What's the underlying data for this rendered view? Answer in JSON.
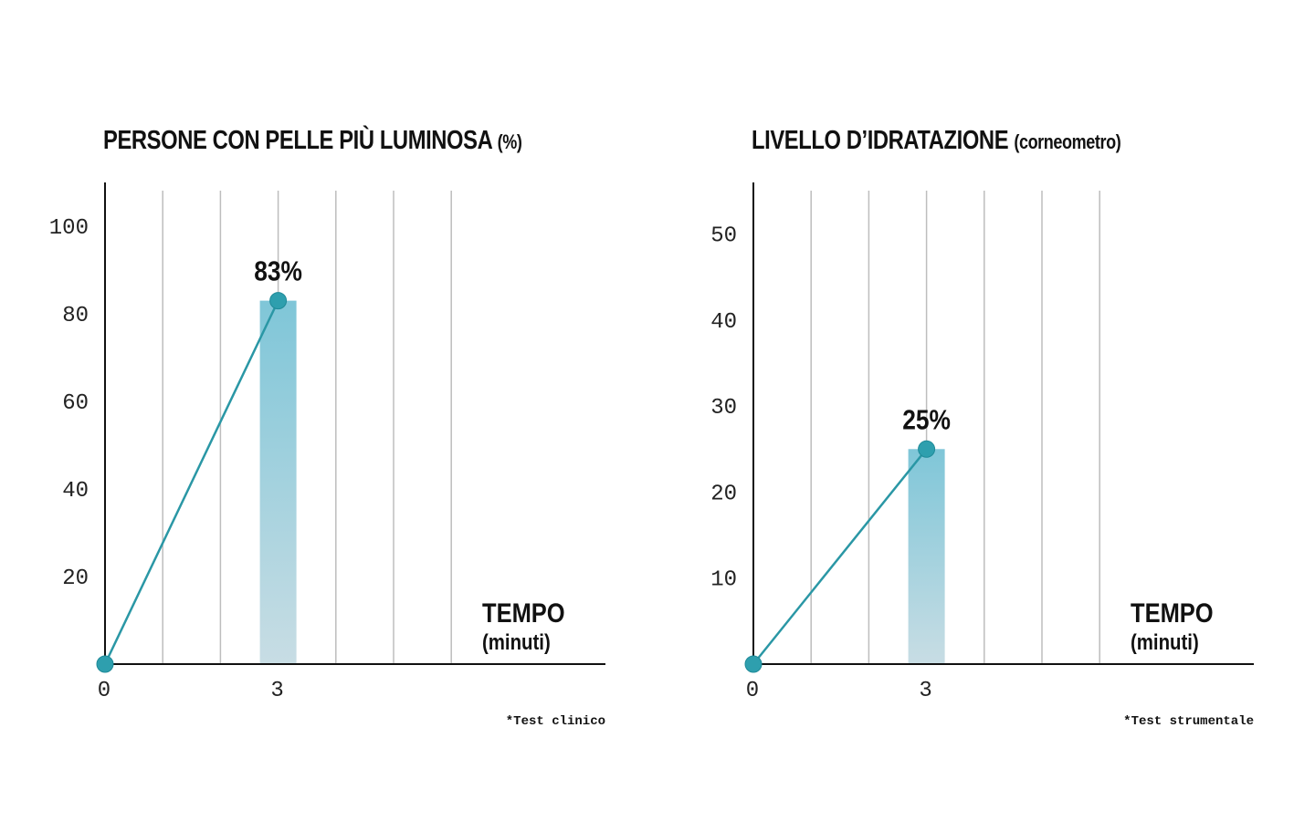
{
  "chart_data": [
    {
      "type": "line",
      "title": "PERSONE CON PELLE PIÙ LUMINOSA",
      "title_unit": "(%)",
      "xlabel": "TEMPO",
      "xlabel_unit": "(minuti)",
      "x_ticks": [
        "0",
        "3"
      ],
      "y_ticks": [
        "20",
        "40",
        "60",
        "80",
        "100"
      ],
      "ylim": [
        0,
        110
      ],
      "grid": true,
      "points": [
        {
          "x": 0,
          "y": 0
        },
        {
          "x": 3,
          "y": 83
        }
      ],
      "bar": {
        "x": 3,
        "value": 83
      },
      "data_label": "83%",
      "footnote": "*Test clinico"
    },
    {
      "type": "line",
      "title": "LIVELLO D’IDRATAZIONE",
      "title_unit": "(corneometro)",
      "xlabel": "TEMPO",
      "xlabel_unit": "(minuti)",
      "x_ticks": [
        "0",
        "3"
      ],
      "y_ticks": [
        "10",
        "20",
        "30",
        "40",
        "50"
      ],
      "ylim": [
        0,
        56
      ],
      "grid": true,
      "points": [
        {
          "x": 0,
          "y": 0
        },
        {
          "x": 3,
          "y": 25
        }
      ],
      "bar": {
        "x": 3,
        "value": 25
      },
      "data_label": "25%",
      "footnote": "*Test strumentale"
    }
  ],
  "colors": {
    "line": "#2a97a5",
    "marker": "#2e9fae",
    "bar_top": "#7fc6d8",
    "bar_bottom": "#c8dde4",
    "grid": "#bdbdbd",
    "axis": "#111111"
  }
}
